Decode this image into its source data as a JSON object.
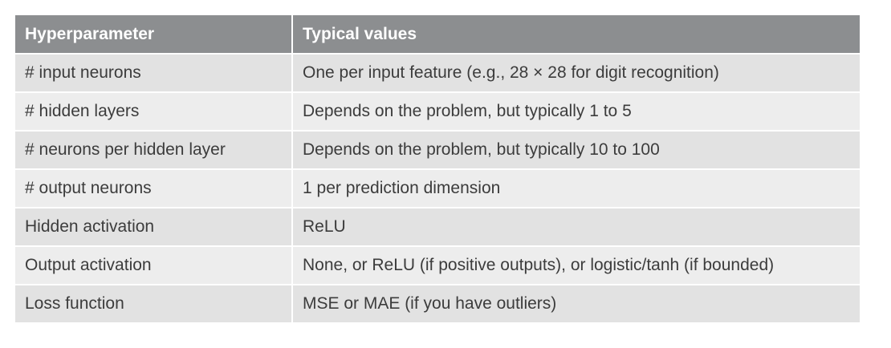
{
  "table": {
    "headers": [
      "Hyperparameter",
      "Typical values"
    ],
    "rows": [
      [
        "# input neurons",
        "One per input feature (e.g., 28 × 28 for digit recognition)"
      ],
      [
        "# hidden layers",
        "Depends on the problem, but typically 1 to 5"
      ],
      [
        "# neurons per hidden layer",
        "Depends on the problem, but typically 10 to 100"
      ],
      [
        "# output neurons",
        "1 per prediction dimension"
      ],
      [
        "Hidden activation",
        "ReLU"
      ],
      [
        "Output activation",
        "None, or ReLU (if positive outputs), or logistic/tanh (if bounded)"
      ],
      [
        "Loss function",
        "MSE or MAE (if you have outliers)"
      ]
    ]
  }
}
